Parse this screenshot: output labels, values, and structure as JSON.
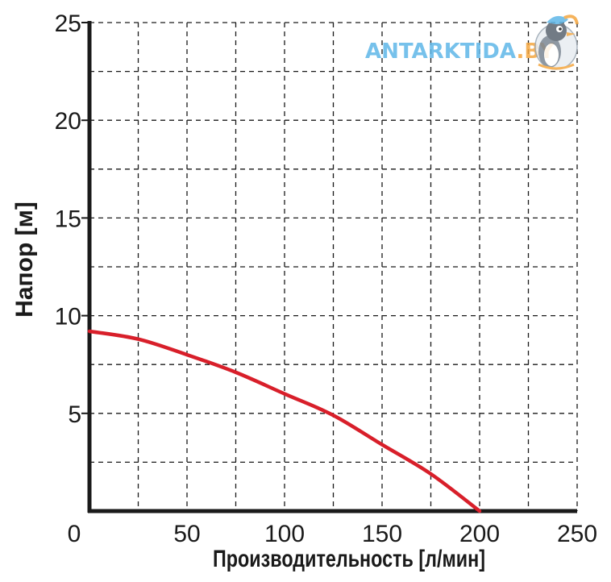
{
  "chart_data": {
    "type": "line",
    "title": "",
    "xlabel": "Производительность [л/мин]",
    "ylabel": "Напор [м]",
    "xlim": [
      0,
      250
    ],
    "ylim": [
      0,
      25
    ],
    "x_ticks": [
      0,
      50,
      100,
      150,
      200,
      250
    ],
    "x_tick_labels": [
      "0",
      "50",
      "100",
      "150",
      "200",
      "250"
    ],
    "y_ticks": [
      5,
      10,
      15,
      20,
      25
    ],
    "y_tick_labels": [
      "5",
      "10",
      "15",
      "20",
      "25"
    ],
    "grid": true,
    "grid_style": "dashed",
    "grid_step_x": 25,
    "grid_step_y": 2.5,
    "series": [
      {
        "color": "#d81f2a",
        "x": [
          0,
          25,
          50,
          75,
          100,
          125,
          150,
          175,
          200
        ],
        "y": [
          9.2,
          8.8,
          8.0,
          7.1,
          6.0,
          4.9,
          3.4,
          1.9,
          0
        ]
      }
    ]
  },
  "watermark": {
    "text_main": "ANTARKTIDA",
    "text_suffix": ".BY",
    "main_color": "#5fb7e8",
    "suffix_color": "#f4a640",
    "logo": "penguin-logo"
  }
}
